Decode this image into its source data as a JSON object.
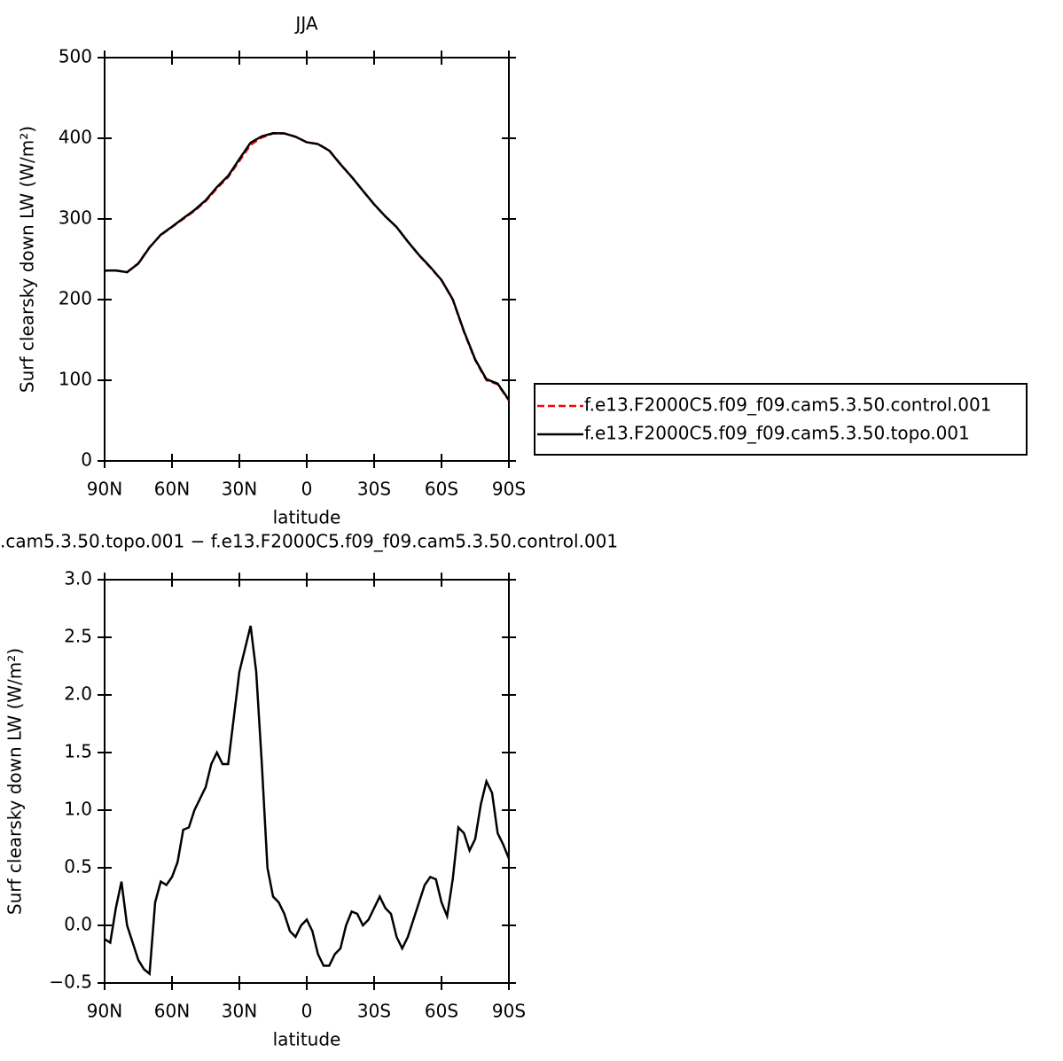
{
  "chart_data": [
    {
      "type": "line",
      "title": "JJA",
      "xlabel": "latitude",
      "ylabel": "Surf clearsky down LW (W/m²)",
      "x": [
        90,
        85,
        80,
        75,
        70,
        65,
        60,
        55,
        50,
        45,
        40,
        35,
        30,
        25,
        20,
        15,
        10,
        5,
        0,
        -5,
        -10,
        -15,
        -20,
        -25,
        -30,
        -35,
        -40,
        -45,
        -50,
        -55,
        -60,
        -65,
        -70,
        -75,
        -80,
        -85,
        -90
      ],
      "series": [
        {
          "name": "f.e13.F2000C5.f09_f09.cam5.3.50.control.001",
          "color": "#ff0000",
          "line_style": "dashed",
          "values": [
            236,
            236,
            234,
            245,
            265,
            280,
            290,
            300,
            310,
            322,
            338,
            352,
            372,
            392,
            401,
            406,
            406,
            402,
            395,
            393,
            385,
            368,
            352,
            335,
            318,
            303,
            290,
            272,
            255,
            240,
            224,
            200,
            160,
            125,
            100,
            95,
            75
          ]
        },
        {
          "name": "f.e13.F2000C5.f09_f09.cam5.3.50.topo.001",
          "color": "#000000",
          "line_style": "solid",
          "values": [
            235.9,
            236.1,
            234,
            244.7,
            264.6,
            280.4,
            290.4,
            300.8,
            311,
            323.2,
            339.5,
            353.4,
            374.2,
            394.6,
            402.4,
            406.3,
            406.1,
            401.9,
            395.1,
            392.8,
            384.7,
            367.8,
            352.1,
            335,
            318.2,
            303.2,
            289.9,
            271.9,
            255.2,
            240.4,
            224.2,
            200.4,
            160.8,
            125.8,
            101.3,
            95.8,
            75.6
          ]
        }
      ],
      "xlim": [
        90,
        -90
      ],
      "xticks": [
        {
          "value": 90,
          "label": "90N"
        },
        {
          "value": 60,
          "label": "60N"
        },
        {
          "value": 30,
          "label": "30N"
        },
        0,
        {
          "value": -30,
          "label": "30S"
        },
        {
          "value": -60,
          "label": "60S"
        },
        {
          "value": -90,
          "label": "90S"
        }
      ],
      "ylim": [
        0,
        500
      ],
      "yticks": [
        0,
        100,
        200,
        300,
        400,
        500
      ],
      "legend": "right"
    },
    {
      "type": "line",
      "title": ".cam5.3.50.topo.001 − f.e13.F2000C5.f09_f09.cam5.3.50.control.001",
      "xlabel": "latitude",
      "ylabel": "Surf clearsky down LW (W/m²)",
      "x": [
        90,
        87.5,
        85,
        82.5,
        80,
        77.5,
        75,
        72.5,
        70,
        67.5,
        65,
        62.5,
        60,
        57.5,
        55,
        52.5,
        50,
        47.5,
        45,
        42.5,
        40,
        37.5,
        35,
        32.5,
        30,
        27.5,
        25,
        22.5,
        20,
        17.5,
        15,
        12.5,
        10,
        7.5,
        5,
        2.5,
        0,
        -2.5,
        -5,
        -7.5,
        -10,
        -12.5,
        -15,
        -17.5,
        -20,
        -22.5,
        -25,
        -27.5,
        -30,
        -32.5,
        -35,
        -37.5,
        -40,
        -42.5,
        -45,
        -47.5,
        -50,
        -52.5,
        -55,
        -57.5,
        -60,
        -62.5,
        -65,
        -67.5,
        -70,
        -72.5,
        -75,
        -77.5,
        -80,
        -82.5,
        -85,
        -87.5,
        -90
      ],
      "series": [
        {
          "color": "#000000",
          "line_style": "solid",
          "values": [
            -0.12,
            -0.15,
            0.15,
            0.38,
            0.0,
            -0.15,
            -0.3,
            -0.38,
            -0.42,
            0.2,
            0.38,
            0.35,
            0.42,
            0.55,
            0.83,
            0.85,
            1.0,
            1.1,
            1.2,
            1.4,
            1.5,
            1.4,
            1.4,
            1.8,
            2.2,
            2.4,
            2.6,
            2.2,
            1.4,
            0.5,
            0.25,
            0.2,
            0.1,
            -0.05,
            -0.1,
            0.0,
            0.05,
            -0.05,
            -0.25,
            -0.35,
            -0.35,
            -0.25,
            -0.2,
            0.0,
            0.12,
            0.1,
            0.0,
            0.05,
            0.15,
            0.25,
            0.15,
            0.1,
            -0.1,
            -0.2,
            -0.1,
            0.05,
            0.2,
            0.35,
            0.42,
            0.4,
            0.2,
            0.08,
            0.4,
            0.85,
            0.8,
            0.65,
            0.75,
            1.05,
            1.25,
            1.15,
            0.8,
            0.7,
            0.58
          ]
        }
      ],
      "xlim": [
        90,
        -90
      ],
      "xticks": [
        {
          "value": 90,
          "label": "90N"
        },
        {
          "value": 60,
          "label": "60N"
        },
        {
          "value": 30,
          "label": "30N"
        },
        0,
        {
          "value": -30,
          "label": "30S"
        },
        {
          "value": -60,
          "label": "60S"
        },
        {
          "value": -90,
          "label": "90S"
        }
      ],
      "ylim": [
        -0.5,
        3.0
      ],
      "yticks": [
        {
          "value": -0.5,
          "label": "−0.5"
        },
        {
          "value": 0,
          "label": "0.0"
        },
        0.5,
        {
          "value": 1,
          "label": "1.0"
        },
        1.5,
        {
          "value": 2,
          "label": "2.0"
        },
        2.5,
        {
          "value": 3,
          "label": "3.0"
        }
      ]
    }
  ]
}
